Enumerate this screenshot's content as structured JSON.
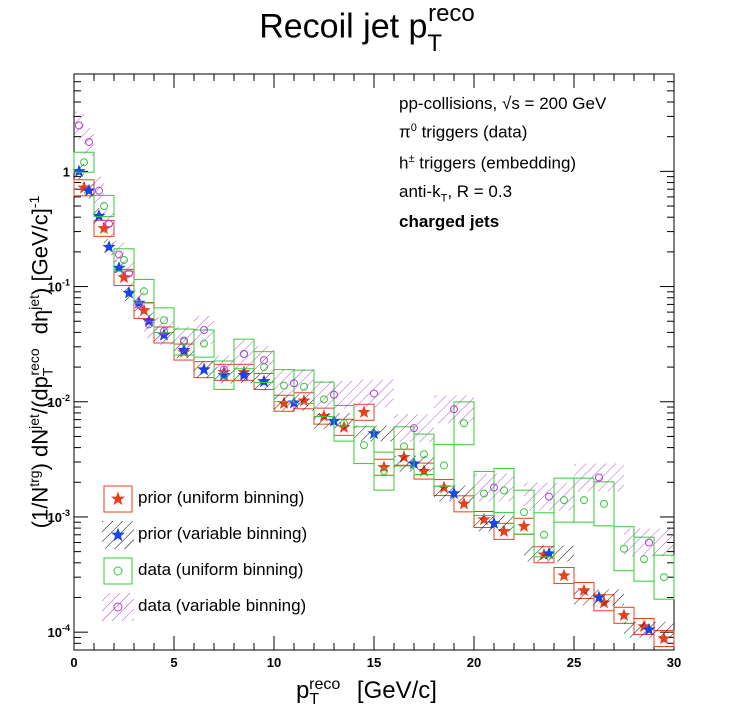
{
  "title": {
    "main": "Recoil jet p",
    "sub": "T",
    "sup": "reco"
  },
  "annotations": {
    "line1": "pp-collisions, √s = 200 GeV",
    "line2_pre": "π",
    "line2_sup": "0",
    "line2_post": " triggers (data)",
    "line3_pre": "h",
    "line3_sup": "±",
    "line3_post": " triggers (embedding)",
    "line4_pre": "anti-k",
    "line4_sub": "T",
    "line4_post": ", R = 0.3",
    "line5": "charged jets"
  },
  "legend": [
    {
      "label": "prior (uniform binning)",
      "color": "#e8401c",
      "marker": "star",
      "fill": "box"
    },
    {
      "label": "prior (variable binning)",
      "color": "#1746e8",
      "marker": "star",
      "fill": "hatch"
    },
    {
      "label": "data (uniform binning)",
      "color": "#33cc33",
      "marker": "circle",
      "fill": "box"
    },
    {
      "label": "data (variable binning)",
      "color": "#b340d9",
      "marker": "circle",
      "fill": "hatch"
    }
  ],
  "xaxis": {
    "label_main": "p",
    "label_sub": "T",
    "label_sup": "reco",
    "label_unit": " [GeV/c]",
    "ticks": [
      "0",
      "5",
      "10",
      "15",
      "20",
      "25",
      "30"
    ]
  },
  "yaxis": {
    "label": "(1/N^trg) dN^jet/(dp_T^reco dη^jet) [GeV/c]^-1",
    "ticks": [
      "10⁻⁴",
      "10⁻³",
      "10⁻²",
      "10⁻¹",
      "1"
    ]
  },
  "chart_data": {
    "type": "scatter",
    "title": "Recoil jet pT reco",
    "xlabel": "pT reco [GeV/c]",
    "ylabel": "(1/Ntrg) dNjet/(dpT reco dηjet) [GeV/c]-1",
    "xlim": [
      0,
      30
    ],
    "ylim": [
      7e-05,
      7
    ],
    "yscale": "log",
    "series": [
      {
        "name": "prior (uniform binning)",
        "color": "#e8401c",
        "x": [
          0.5,
          1.5,
          2.5,
          3.5,
          4.5,
          5.5,
          6.5,
          7.5,
          8.5,
          9.5,
          10.5,
          11.5,
          12.5,
          13.5,
          14.5,
          15.5,
          16.5,
          17.5,
          18.5,
          19.5,
          20.5,
          21.5,
          22.5,
          23.5,
          24.5,
          25.5,
          26.5,
          27.5,
          28.5,
          29.5
        ],
        "y": [
          0.72,
          0.32,
          0.12,
          0.062,
          0.038,
          0.027,
          0.019,
          0.018,
          0.018,
          0.015,
          0.0097,
          0.0102,
          0.0075,
          0.006,
          0.0081,
          0.0027,
          0.0033,
          0.0025,
          0.0018,
          0.0013,
          0.00095,
          0.00075,
          0.00083,
          0.00047,
          0.00031,
          0.00023,
          0.00018,
          0.00014,
          0.000112,
          8.8e-05
        ]
      },
      {
        "name": "prior (variable binning)",
        "color": "#1746e8",
        "x": [
          0.25,
          0.75,
          1.25,
          1.75,
          2.25,
          2.75,
          3.25,
          3.75,
          4.5,
          5.5,
          6.5,
          7.5,
          8.5,
          9.5,
          11,
          13,
          15,
          17,
          19,
          21,
          23.75,
          26.25,
          28.75
        ],
        "y": [
          1.0,
          0.68,
          0.41,
          0.22,
          0.145,
          0.088,
          0.072,
          0.05,
          0.038,
          0.028,
          0.019,
          0.017,
          0.017,
          0.015,
          0.0098,
          0.0068,
          0.0053,
          0.0029,
          0.0016,
          0.00088,
          0.00048,
          0.0002,
          0.000105
        ]
      },
      {
        "name": "data (uniform binning)",
        "color": "#33cc33",
        "x": [
          0.5,
          1.5,
          2.5,
          3.5,
          4.5,
          5.5,
          6.5,
          7.5,
          8.5,
          9.5,
          10.5,
          11.5,
          12.5,
          13.5,
          14.5,
          15.5,
          16.5,
          17.5,
          18.5,
          19.5,
          20.5,
          21.5,
          22.5,
          23.5,
          24.5,
          25.5,
          26.5,
          27.5,
          28.5,
          29.5
        ],
        "y": [
          1.2,
          0.5,
          0.17,
          0.091,
          0.051,
          0.033,
          0.032,
          0.017,
          0.026,
          0.02,
          0.0138,
          0.0135,
          0.0105,
          0.0065,
          0.0042,
          0.0025,
          0.0041,
          0.0035,
          0.0028,
          0.0065,
          0.0016,
          0.0017,
          0.0011,
          0.0007,
          0.0014,
          0.0014,
          0.0013,
          0.00053,
          0.00043,
          0.0003
        ]
      },
      {
        "name": "data (variable binning)",
        "color": "#b340d9",
        "x": [
          0.25,
          0.75,
          1.25,
          1.75,
          2.25,
          2.75,
          3.25,
          3.75,
          4.5,
          5.5,
          6.5,
          7.5,
          8.5,
          9.5,
          11,
          13,
          15,
          17,
          19,
          21,
          23.75,
          26.25,
          28.75
        ],
        "y": [
          2.5,
          1.8,
          0.68,
          0.35,
          0.19,
          0.13,
          0.07,
          0.047,
          0.041,
          0.034,
          0.042,
          0.019,
          0.026,
          0.023,
          0.0145,
          0.0115,
          0.0118,
          0.0059,
          0.0086,
          0.0018,
          0.0015,
          0.0022,
          0.0006
        ]
      }
    ]
  }
}
